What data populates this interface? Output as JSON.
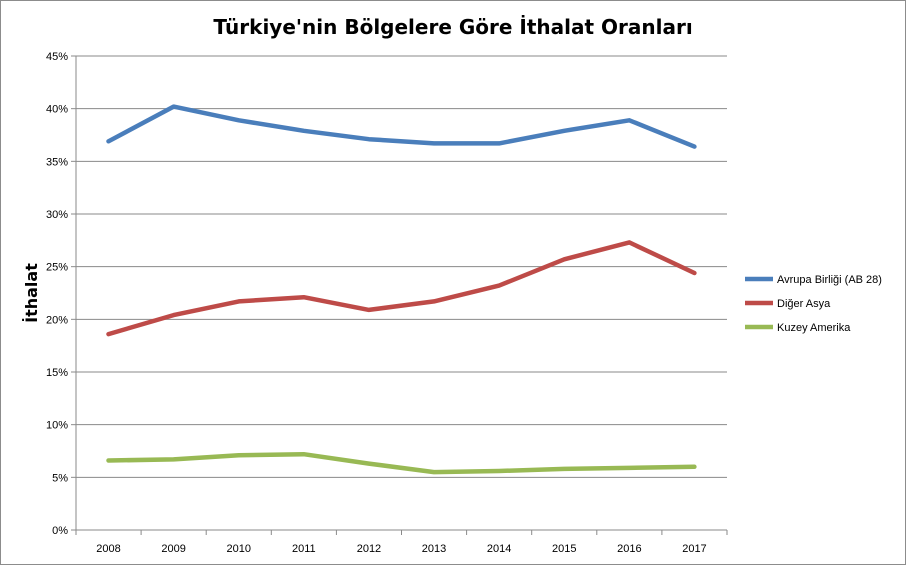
{
  "chart_data": {
    "type": "line",
    "title": "Türkiye'nin Bölgelere Göre İthalat Oranları",
    "xlabel": "",
    "ylabel": "İthalat",
    "categories": [
      "2008",
      "2009",
      "2010",
      "2011",
      "2012",
      "2013",
      "2014",
      "2015",
      "2016",
      "2017"
    ],
    "y_ticks": [
      "0%",
      "5%",
      "10%",
      "15%",
      "20%",
      "25%",
      "30%",
      "35%",
      "40%",
      "45%"
    ],
    "ylim": [
      0,
      45
    ],
    "grid": true,
    "legend_position": "right",
    "series": [
      {
        "name": "Avrupa Birliği (AB 28)",
        "color": "#4a7ebb",
        "values": [
          36.9,
          40.2,
          38.9,
          37.9,
          37.1,
          36.7,
          36.7,
          37.9,
          38.9,
          36.4
        ]
      },
      {
        "name": "Diğer Asya",
        "color": "#be4b48",
        "values": [
          18.6,
          20.4,
          21.7,
          22.1,
          20.9,
          21.7,
          23.2,
          25.7,
          27.3,
          24.4
        ]
      },
      {
        "name": "Kuzey Amerika",
        "color": "#98b954",
        "values": [
          6.6,
          6.7,
          7.1,
          7.2,
          6.3,
          5.5,
          5.6,
          5.8,
          5.9,
          6.0
        ]
      }
    ]
  }
}
